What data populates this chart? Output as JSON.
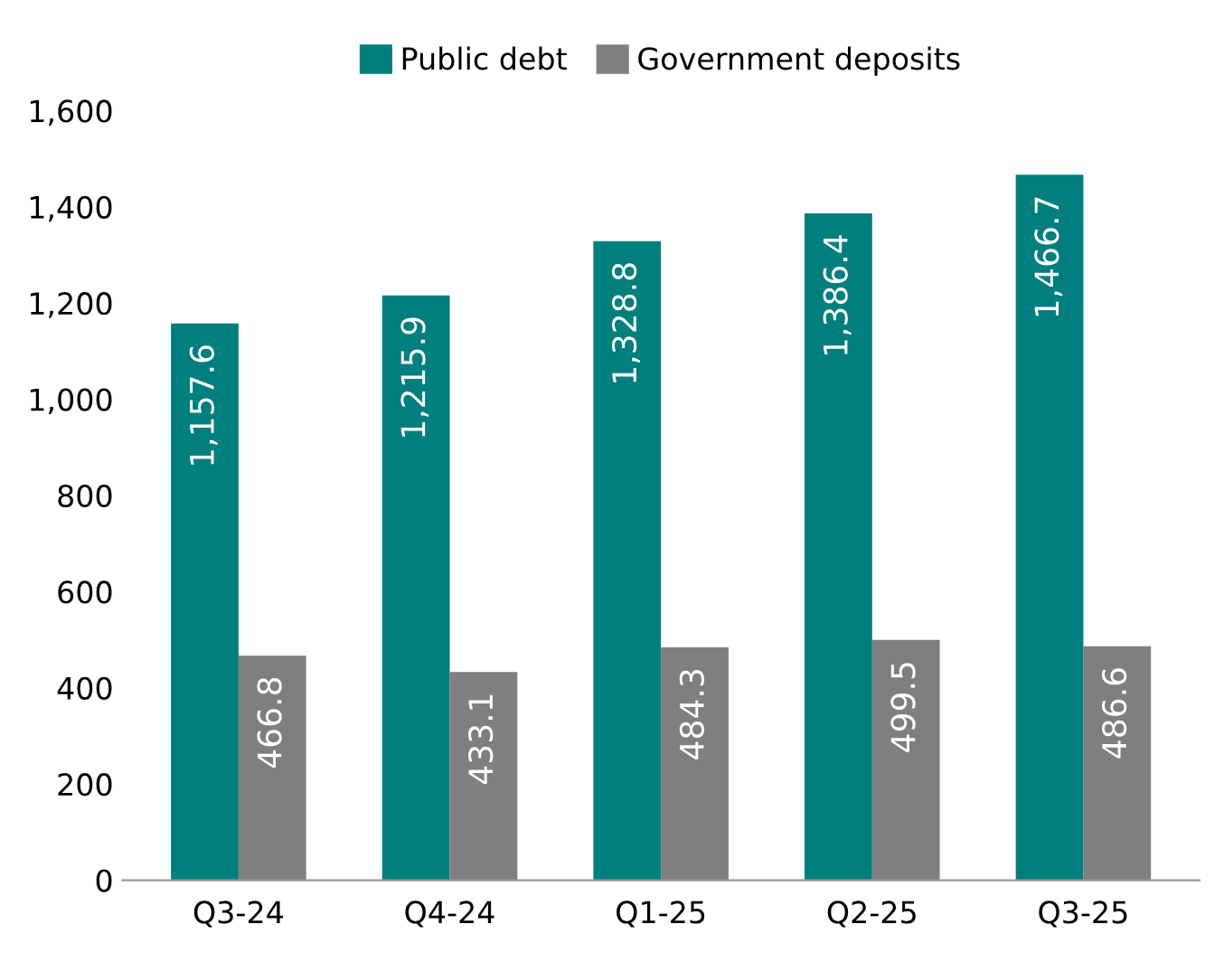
{
  "chart_data": {
    "type": "bar",
    "categories": [
      "Q3-24",
      "Q4-24",
      "Q1-25",
      "Q2-25",
      "Q3-25"
    ],
    "series": [
      {
        "name": "Public debt",
        "color": "#007f7e",
        "values": [
          1157.6,
          1215.9,
          1328.8,
          1386.4,
          1466.7
        ],
        "value_labels": [
          "1,157.6",
          "1,215.9",
          "1,328.8",
          "1,386.4",
          "1,466.7"
        ]
      },
      {
        "name": "Government deposits",
        "color": "#7f7f7f",
        "values": [
          466.8,
          433.1,
          484.3,
          499.5,
          486.6
        ],
        "value_labels": [
          "466.8",
          "433.1",
          "484.3",
          "499.5",
          "486.6"
        ]
      }
    ],
    "ylim": [
      0,
      1600
    ],
    "yticks": [
      0,
      200,
      400,
      600,
      800,
      {
        "value": 1000,
        "label": "1,000"
      },
      {
        "value": 1200,
        "label": "1,200"
      },
      {
        "value": 1400,
        "label": "1,400"
      },
      {
        "value": 1600,
        "label": "1,600"
      }
    ],
    "grid": false,
    "legend": "top"
  }
}
